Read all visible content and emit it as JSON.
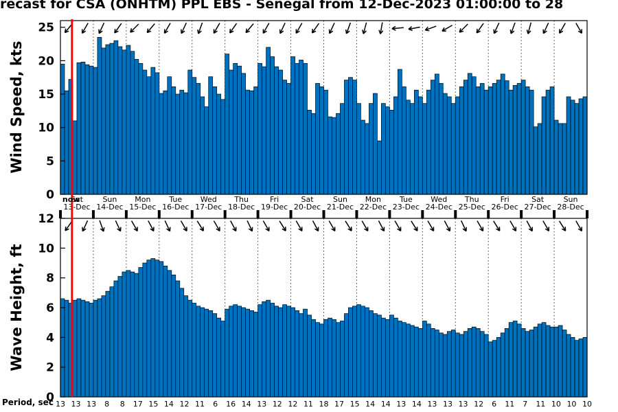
{
  "title": "recast for CSA (ONHTM) PPL EBS  - Senegal from 12-Dec-2023 01:00:00 to 28",
  "colors": {
    "bar_fill": "#0072BD",
    "bar_edge": "#000000",
    "now_line": "#FF0000",
    "grid": "#333333"
  },
  "x_axis": {
    "dates": [
      "13-Dec",
      "14-Dec",
      "15-Dec",
      "16-Dec",
      "17-Dec",
      "18-Dec",
      "19-Dec",
      "20-Dec",
      "21-Dec",
      "22-Dec",
      "23-Dec",
      "24-Dec",
      "25-Dec",
      "26-Dec",
      "27-Dec",
      "28-Dec"
    ],
    "day_names": [
      "Sat",
      "Sun",
      "Mon",
      "Tue",
      "Wed",
      "Thu",
      "Fri",
      "Sat",
      "Sun",
      "Mon",
      "Tue",
      "Wed",
      "Thu",
      "Fri",
      "Sat",
      "Sun"
    ],
    "now_label": "now",
    "now_fraction": 0.022
  },
  "period_axis": {
    "label": "Period, sec",
    "values": [
      13,
      13,
      13,
      8,
      8,
      17,
      15,
      14,
      12,
      11,
      6,
      16,
      14,
      13,
      12,
      12,
      11,
      18,
      17,
      15,
      14,
      14,
      13,
      14,
      13,
      13,
      13,
      12,
      6,
      11,
      7,
      11,
      10,
      10,
      10
    ]
  },
  "chart_data": [
    {
      "type": "bar",
      "ylabel": "Wind Speed, kts",
      "ylim": [
        0,
        26
      ],
      "yticks": [
        0,
        5,
        10,
        15,
        20,
        25
      ],
      "grid": "vertical-dotted",
      "legend": "none",
      "values": [
        19.5,
        15.5,
        17.2,
        11.0,
        19.7,
        19.8,
        19.4,
        19.2,
        19.0,
        23.5,
        21.9,
        22.4,
        22.6,
        23.0,
        22.1,
        21.6,
        22.3,
        21.4,
        20.2,
        19.6,
        18.6,
        17.6,
        19.0,
        18.2,
        15.1,
        15.5,
        17.6,
        16.1,
        15.0,
        15.6,
        15.2,
        18.6,
        17.5,
        16.6,
        14.6,
        13.1,
        17.6,
        16.1,
        15.0,
        14.2,
        21.0,
        18.6,
        19.6,
        19.2,
        18.1,
        15.6,
        15.5,
        16.1,
        19.6,
        19.1,
        22.0,
        20.6,
        19.1,
        18.6,
        17.1,
        16.6,
        20.6,
        19.6,
        20.1,
        19.6,
        12.6,
        12.1,
        16.6,
        16.1,
        15.6,
        11.6,
        11.5,
        12.1,
        13.6,
        17.1,
        17.5,
        17.1,
        13.6,
        11.1,
        10.6,
        13.6,
        15.1,
        8.0,
        13.6,
        13.1,
        12.6,
        14.6,
        18.7,
        16.1,
        14.1,
        13.6,
        15.6,
        14.6,
        13.6,
        15.6,
        17.1,
        18.0,
        16.6,
        15.1,
        14.6,
        13.6,
        14.6,
        16.1,
        17.1,
        18.1,
        17.6,
        16.1,
        16.6,
        15.6,
        16.1,
        16.6,
        17.1,
        18.0,
        17.0,
        15.6,
        16.3,
        16.6,
        17.1,
        16.1,
        15.6,
        10.1,
        10.6,
        14.6,
        15.6,
        16.1,
        11.1,
        10.6,
        10.6,
        14.6,
        14.1,
        13.6,
        14.3,
        14.6
      ],
      "arrow_angles_deg": [
        130,
        120,
        115,
        125,
        135,
        130,
        120,
        115,
        110,
        120,
        125,
        130,
        120,
        115,
        120,
        125,
        115,
        110,
        105,
        100,
        175,
        170,
        160,
        150,
        135,
        125,
        115,
        110,
        105,
        115,
        120,
        60
      ]
    },
    {
      "type": "bar",
      "ylabel": "Wave Height, ft",
      "ylim": [
        0,
        12
      ],
      "yticks": [
        0,
        2,
        4,
        6,
        8,
        10,
        12
      ],
      "grid": "vertical-dotted",
      "legend": "none",
      "values": [
        6.6,
        6.5,
        6.3,
        6.5,
        6.6,
        6.5,
        6.4,
        6.3,
        6.5,
        6.6,
        6.8,
        7.1,
        7.4,
        7.8,
        8.1,
        8.4,
        8.5,
        8.4,
        8.3,
        8.7,
        9.0,
        9.2,
        9.3,
        9.2,
        9.1,
        8.8,
        8.5,
        8.2,
        7.8,
        7.3,
        6.8,
        6.5,
        6.3,
        6.1,
        6.0,
        5.9,
        5.8,
        5.6,
        5.3,
        5.1,
        5.9,
        6.1,
        6.2,
        6.1,
        6.0,
        5.9,
        5.8,
        5.7,
        6.2,
        6.4,
        6.5,
        6.3,
        6.1,
        6.0,
        6.2,
        6.1,
        6.0,
        5.8,
        5.6,
        5.9,
        5.5,
        5.2,
        5.0,
        4.9,
        5.2,
        5.3,
        5.2,
        5.0,
        5.1,
        5.6,
        6.0,
        6.1,
        6.2,
        6.1,
        6.0,
        5.8,
        5.6,
        5.5,
        5.3,
        5.2,
        5.5,
        5.3,
        5.1,
        5.0,
        4.9,
        4.8,
        4.7,
        4.6,
        5.1,
        4.9,
        4.6,
        4.5,
        4.3,
        4.2,
        4.4,
        4.5,
        4.3,
        4.2,
        4.4,
        4.6,
        4.7,
        4.6,
        4.4,
        4.2,
        3.7,
        3.8,
        4.0,
        4.3,
        4.6,
        5.0,
        5.1,
        4.9,
        4.6,
        4.4,
        4.5,
        4.7,
        4.9,
        5.0,
        4.8,
        4.7,
        4.7,
        4.8,
        4.5,
        4.2,
        4.0,
        3.8,
        3.9,
        4.0
      ],
      "arrow_angles_deg": [
        125,
        115,
        70,
        65,
        60,
        62,
        65,
        60,
        58,
        60,
        62,
        65,
        60,
        58,
        60,
        62,
        60,
        58,
        60,
        62,
        60,
        58,
        60,
        62,
        65,
        60,
        58,
        60,
        62,
        60,
        58,
        60
      ]
    }
  ]
}
